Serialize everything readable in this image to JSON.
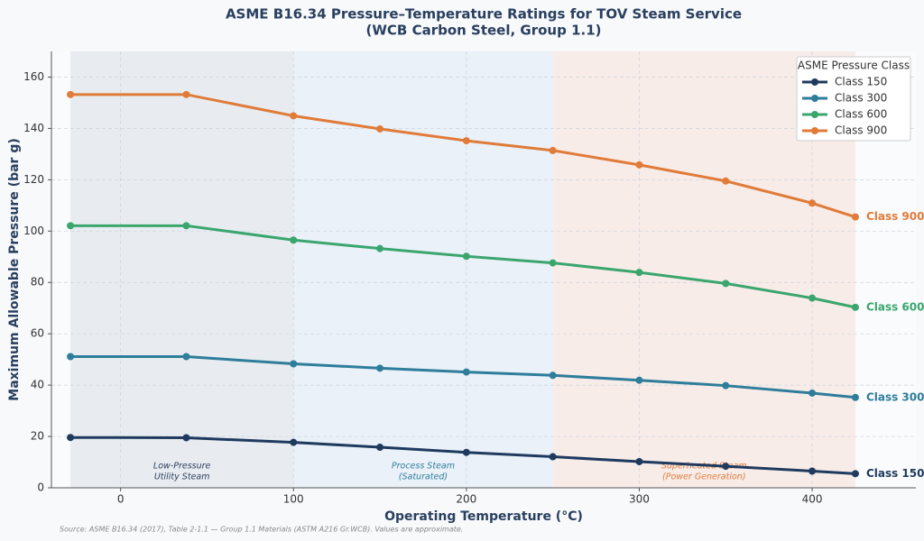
{
  "chart_data": {
    "type": "line",
    "title": "ASME B16.34 Pressure–Temperature Ratings for TOV Steam Service",
    "subtitle": "(WCB Carbon Steel, Group 1.1)",
    "x_label": "Operating Temperature (°C)",
    "y_label": "Maximum Allowable Pressure (bar g)",
    "x": [
      -29,
      38,
      100,
      150,
      200,
      250,
      300,
      350,
      400,
      425
    ],
    "series": [
      {
        "name": "Class 150",
        "color": "#1f3a5f",
        "values": [
          19.6,
          19.5,
          17.7,
          15.8,
          13.8,
          12.1,
          10.2,
          8.4,
          6.5,
          5.5
        ]
      },
      {
        "name": "Class 300",
        "color": "#2e7d9a",
        "values": [
          51.1,
          51.1,
          48.3,
          46.6,
          45.1,
          43.8,
          41.9,
          39.8,
          36.9,
          35.2
        ]
      },
      {
        "name": "Class 600",
        "color": "#3aa66e",
        "values": [
          102.1,
          102.1,
          96.5,
          93.2,
          90.2,
          87.6,
          83.9,
          79.6,
          73.9,
          70.3
        ]
      },
      {
        "name": "Class 900",
        "color": "#e07b39",
        "values": [
          153.2,
          153.2,
          144.9,
          139.8,
          135.2,
          131.4,
          125.8,
          119.5,
          110.9,
          105.5
        ]
      }
    ],
    "regions": [
      {
        "lines": [
          "Low-Pressure",
          "Utility Steam"
        ],
        "x": [
          -29,
          100
        ],
        "color": "#e3e8ec",
        "text_color": "#2a3f5f"
      },
      {
        "lines": [
          "Process Steam",
          "(Saturated)"
        ],
        "x": [
          100,
          250
        ],
        "color": "#e6eff8",
        "text_color": "#2e7d9a"
      },
      {
        "lines": [
          "Superheated Steam",
          "(Power Generation)"
        ],
        "x": [
          250,
          425
        ],
        "color": "#f8e9e4",
        "text_color": "#e07b39"
      }
    ],
    "xlim": [
      -40,
      460
    ],
    "ylim": [
      0,
      170
    ],
    "xticks": [
      0,
      100,
      200,
      300,
      400
    ],
    "yticks": [
      0,
      20,
      40,
      60,
      80,
      100,
      120,
      140,
      160
    ],
    "grid": true,
    "legend_title": "ASME Pressure Class",
    "legend": "upper right",
    "source": "Source: ASME B16.34 (2017), Table 2-1.1 — Group 1.1 Materials (ASTM A216 Gr.WCB). Values are approximate."
  }
}
